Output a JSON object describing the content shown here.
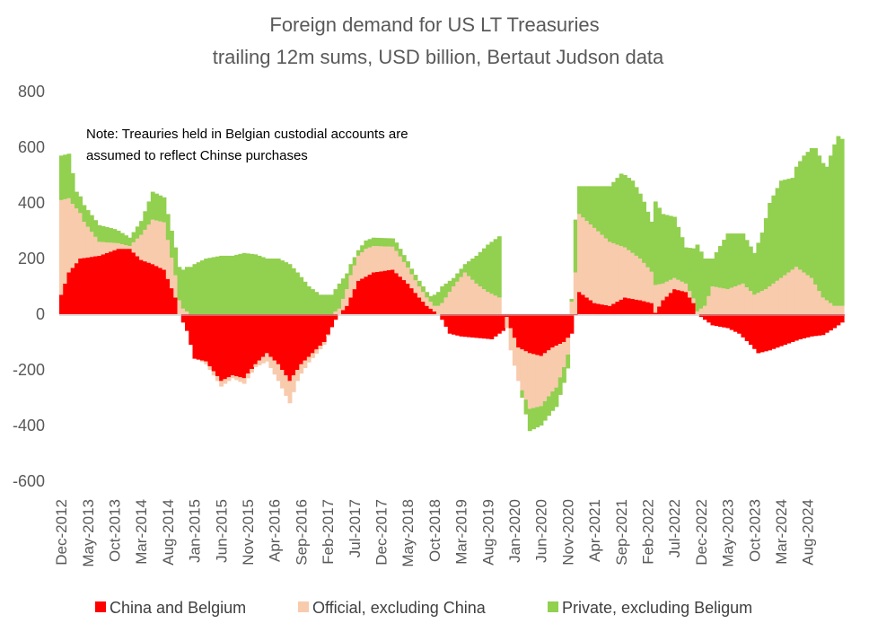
{
  "chart_data": {
    "type": "bar",
    "stacked": true,
    "title": "Foreign demand for US LT Treasuries",
    "subtitle": "trailing 12m sums, USD billion, Bertaut Judson data",
    "note_lines": [
      "Note: Treauries held in Belgian custodial accounts are",
      "assumed to reflect Chinse purchases"
    ],
    "ylim": [
      -600,
      800
    ],
    "yticks": [
      -600,
      -400,
      -200,
      0,
      200,
      400,
      600,
      800
    ],
    "x_start": "Dec-2012",
    "x_tick_labels": [
      "Dec-2012",
      "May-2013",
      "Oct-2013",
      "Mar-2014",
      "Aug-2014",
      "Jan-2015",
      "Jun-2015",
      "Nov-2015",
      "Apr-2016",
      "Sep-2016",
      "Feb-2017",
      "Jul-2017",
      "Dec-2017",
      "May-2018",
      "Oct-2018",
      "Mar-2019",
      "Aug-2019",
      "Jan-2020",
      "Jun-2020",
      "Nov-2020",
      "Apr-2021",
      "Sep-2021",
      "Feb-2022",
      "Jul-2022",
      "Dec-2022",
      "May-2023",
      "Oct-2023",
      "Mar-2024",
      "Aug-2024"
    ],
    "legend_position": "bottom",
    "series": [
      {
        "name": "China and Belgium",
        "color": "#ff0000",
        "knots": [
          [
            0,
            70
          ],
          [
            2,
            150
          ],
          [
            5,
            200
          ],
          [
            10,
            210
          ],
          [
            15,
            235
          ],
          [
            18,
            235
          ],
          [
            21,
            195
          ],
          [
            24,
            180
          ],
          [
            27,
            160
          ],
          [
            30,
            60
          ],
          [
            31,
            0
          ],
          [
            33,
            -60
          ],
          [
            35,
            -160
          ],
          [
            38,
            -170
          ],
          [
            42,
            -240
          ],
          [
            45,
            -220
          ],
          [
            48,
            -230
          ],
          [
            51,
            -180
          ],
          [
            54,
            -140
          ],
          [
            57,
            -180
          ],
          [
            60,
            -240
          ],
          [
            63,
            -180
          ],
          [
            66,
            -140
          ],
          [
            69,
            -100
          ],
          [
            72,
            -20
          ],
          [
            73,
            0
          ],
          [
            75,
            30
          ],
          [
            78,
            120
          ],
          [
            82,
            150
          ],
          [
            87,
            160
          ],
          [
            91,
            110
          ],
          [
            94,
            60
          ],
          [
            96,
            30
          ],
          [
            98,
            10
          ],
          [
            99,
            0
          ],
          [
            100,
            -20
          ],
          [
            102,
            -70
          ],
          [
            105,
            -80
          ],
          [
            109,
            -85
          ],
          [
            113,
            -90
          ],
          [
            116,
            -60
          ],
          [
            117,
            -10
          ],
          [
            118,
            -50
          ],
          [
            120,
            -120
          ],
          [
            123,
            -140
          ],
          [
            126,
            -150
          ],
          [
            129,
            -120
          ],
          [
            132,
            -100
          ],
          [
            134,
            -70
          ],
          [
            135,
            -5
          ],
          [
            136,
            80
          ],
          [
            140,
            40
          ],
          [
            144,
            30
          ],
          [
            148,
            60
          ],
          [
            152,
            50
          ],
          [
            155,
            40
          ],
          [
            156,
            5
          ],
          [
            158,
            50
          ],
          [
            161,
            90
          ],
          [
            164,
            80
          ],
          [
            166,
            40
          ],
          [
            167,
            0
          ],
          [
            169,
            -20
          ],
          [
            171,
            -40
          ],
          [
            175,
            -50
          ],
          [
            178,
            -70
          ],
          [
            181,
            -110
          ],
          [
            183,
            -140
          ],
          [
            186,
            -130
          ],
          [
            190,
            -110
          ],
          [
            194,
            -90
          ],
          [
            197,
            -80
          ],
          [
            200,
            -75
          ],
          [
            203,
            -50
          ],
          [
            205,
            -30
          ]
        ]
      },
      {
        "name": "Official, excluding China",
        "color": "#f8cbad",
        "knots": [
          [
            0,
            340
          ],
          [
            3,
            230
          ],
          [
            6,
            130
          ],
          [
            10,
            50
          ],
          [
            15,
            20
          ],
          [
            18,
            10
          ],
          [
            21,
            90
          ],
          [
            24,
            160
          ],
          [
            27,
            170
          ],
          [
            30,
            80
          ],
          [
            32,
            20
          ],
          [
            34,
            0
          ],
          [
            36,
            0
          ],
          [
            38,
            -10
          ],
          [
            42,
            -20
          ],
          [
            45,
            -10
          ],
          [
            48,
            -20
          ],
          [
            51,
            -10
          ],
          [
            54,
            -30
          ],
          [
            57,
            -60
          ],
          [
            60,
            -80
          ],
          [
            62,
            -40
          ],
          [
            65,
            -20
          ],
          [
            69,
            -10
          ],
          [
            71,
            0
          ],
          [
            73,
            20
          ],
          [
            76,
            80
          ],
          [
            80,
            100
          ],
          [
            84,
            90
          ],
          [
            88,
            80
          ],
          [
            92,
            50
          ],
          [
            96,
            30
          ],
          [
            98,
            20
          ],
          [
            100,
            40
          ],
          [
            103,
            100
          ],
          [
            106,
            150
          ],
          [
            109,
            110
          ],
          [
            112,
            80
          ],
          [
            115,
            60
          ],
          [
            116,
            0
          ],
          [
            118,
            -80
          ],
          [
            120,
            -120
          ],
          [
            123,
            -200
          ],
          [
            126,
            -180
          ],
          [
            130,
            -150
          ],
          [
            133,
            -60
          ],
          [
            135,
            150
          ],
          [
            136,
            280
          ],
          [
            140,
            270
          ],
          [
            144,
            230
          ],
          [
            148,
            180
          ],
          [
            152,
            150
          ],
          [
            156,
            100
          ],
          [
            158,
            60
          ],
          [
            161,
            40
          ],
          [
            164,
            30
          ],
          [
            167,
            10
          ],
          [
            169,
            30
          ],
          [
            171,
            100
          ],
          [
            175,
            90
          ],
          [
            179,
            110
          ],
          [
            182,
            70
          ],
          [
            185,
            90
          ],
          [
            189,
            130
          ],
          [
            193,
            170
          ],
          [
            197,
            130
          ],
          [
            200,
            60
          ],
          [
            203,
            30
          ],
          [
            205,
            30
          ]
        ]
      },
      {
        "name": "Private, excluding Beligum",
        "color": "#92d050",
        "knots": [
          [
            0,
            160
          ],
          [
            2,
            160
          ],
          [
            4,
            60
          ],
          [
            7,
            60
          ],
          [
            10,
            60
          ],
          [
            14,
            50
          ],
          [
            18,
            30
          ],
          [
            21,
            50
          ],
          [
            24,
            100
          ],
          [
            27,
            90
          ],
          [
            30,
            100
          ],
          [
            33,
            160
          ],
          [
            35,
            180
          ],
          [
            38,
            200
          ],
          [
            42,
            210
          ],
          [
            45,
            210
          ],
          [
            48,
            220
          ],
          [
            51,
            215
          ],
          [
            54,
            200
          ],
          [
            57,
            200
          ],
          [
            60,
            180
          ],
          [
            62,
            150
          ],
          [
            65,
            100
          ],
          [
            68,
            70
          ],
          [
            71,
            70
          ],
          [
            73,
            90
          ],
          [
            76,
            40
          ],
          [
            78,
            20
          ],
          [
            80,
            30
          ],
          [
            84,
            30
          ],
          [
            88,
            30
          ],
          [
            92,
            20
          ],
          [
            95,
            20
          ],
          [
            97,
            20
          ],
          [
            98,
            40
          ],
          [
            100,
            60
          ],
          [
            103,
            30
          ],
          [
            106,
            30
          ],
          [
            109,
            100
          ],
          [
            112,
            170
          ],
          [
            115,
            220
          ],
          [
            116,
            0
          ],
          [
            118,
            0
          ],
          [
            120,
            0
          ],
          [
            123,
            -80
          ],
          [
            126,
            -70
          ],
          [
            130,
            -70
          ],
          [
            133,
            -50
          ],
          [
            134,
            10
          ],
          [
            135,
            190
          ],
          [
            136,
            100
          ],
          [
            140,
            150
          ],
          [
            144,
            200
          ],
          [
            147,
            260
          ],
          [
            150,
            260
          ],
          [
            153,
            220
          ],
          [
            155,
            180
          ],
          [
            156,
            300
          ],
          [
            158,
            250
          ],
          [
            161,
            220
          ],
          [
            164,
            130
          ],
          [
            166,
            180
          ],
          [
            167,
            240
          ],
          [
            169,
            170
          ],
          [
            171,
            100
          ],
          [
            175,
            200
          ],
          [
            179,
            180
          ],
          [
            182,
            150
          ],
          [
            184,
            210
          ],
          [
            186,
            300
          ],
          [
            189,
            350
          ],
          [
            192,
            330
          ],
          [
            195,
            420
          ],
          [
            198,
            490
          ],
          [
            201,
            480
          ],
          [
            203,
            580
          ],
          [
            204,
            610
          ],
          [
            205,
            600
          ]
        ]
      }
    ]
  }
}
